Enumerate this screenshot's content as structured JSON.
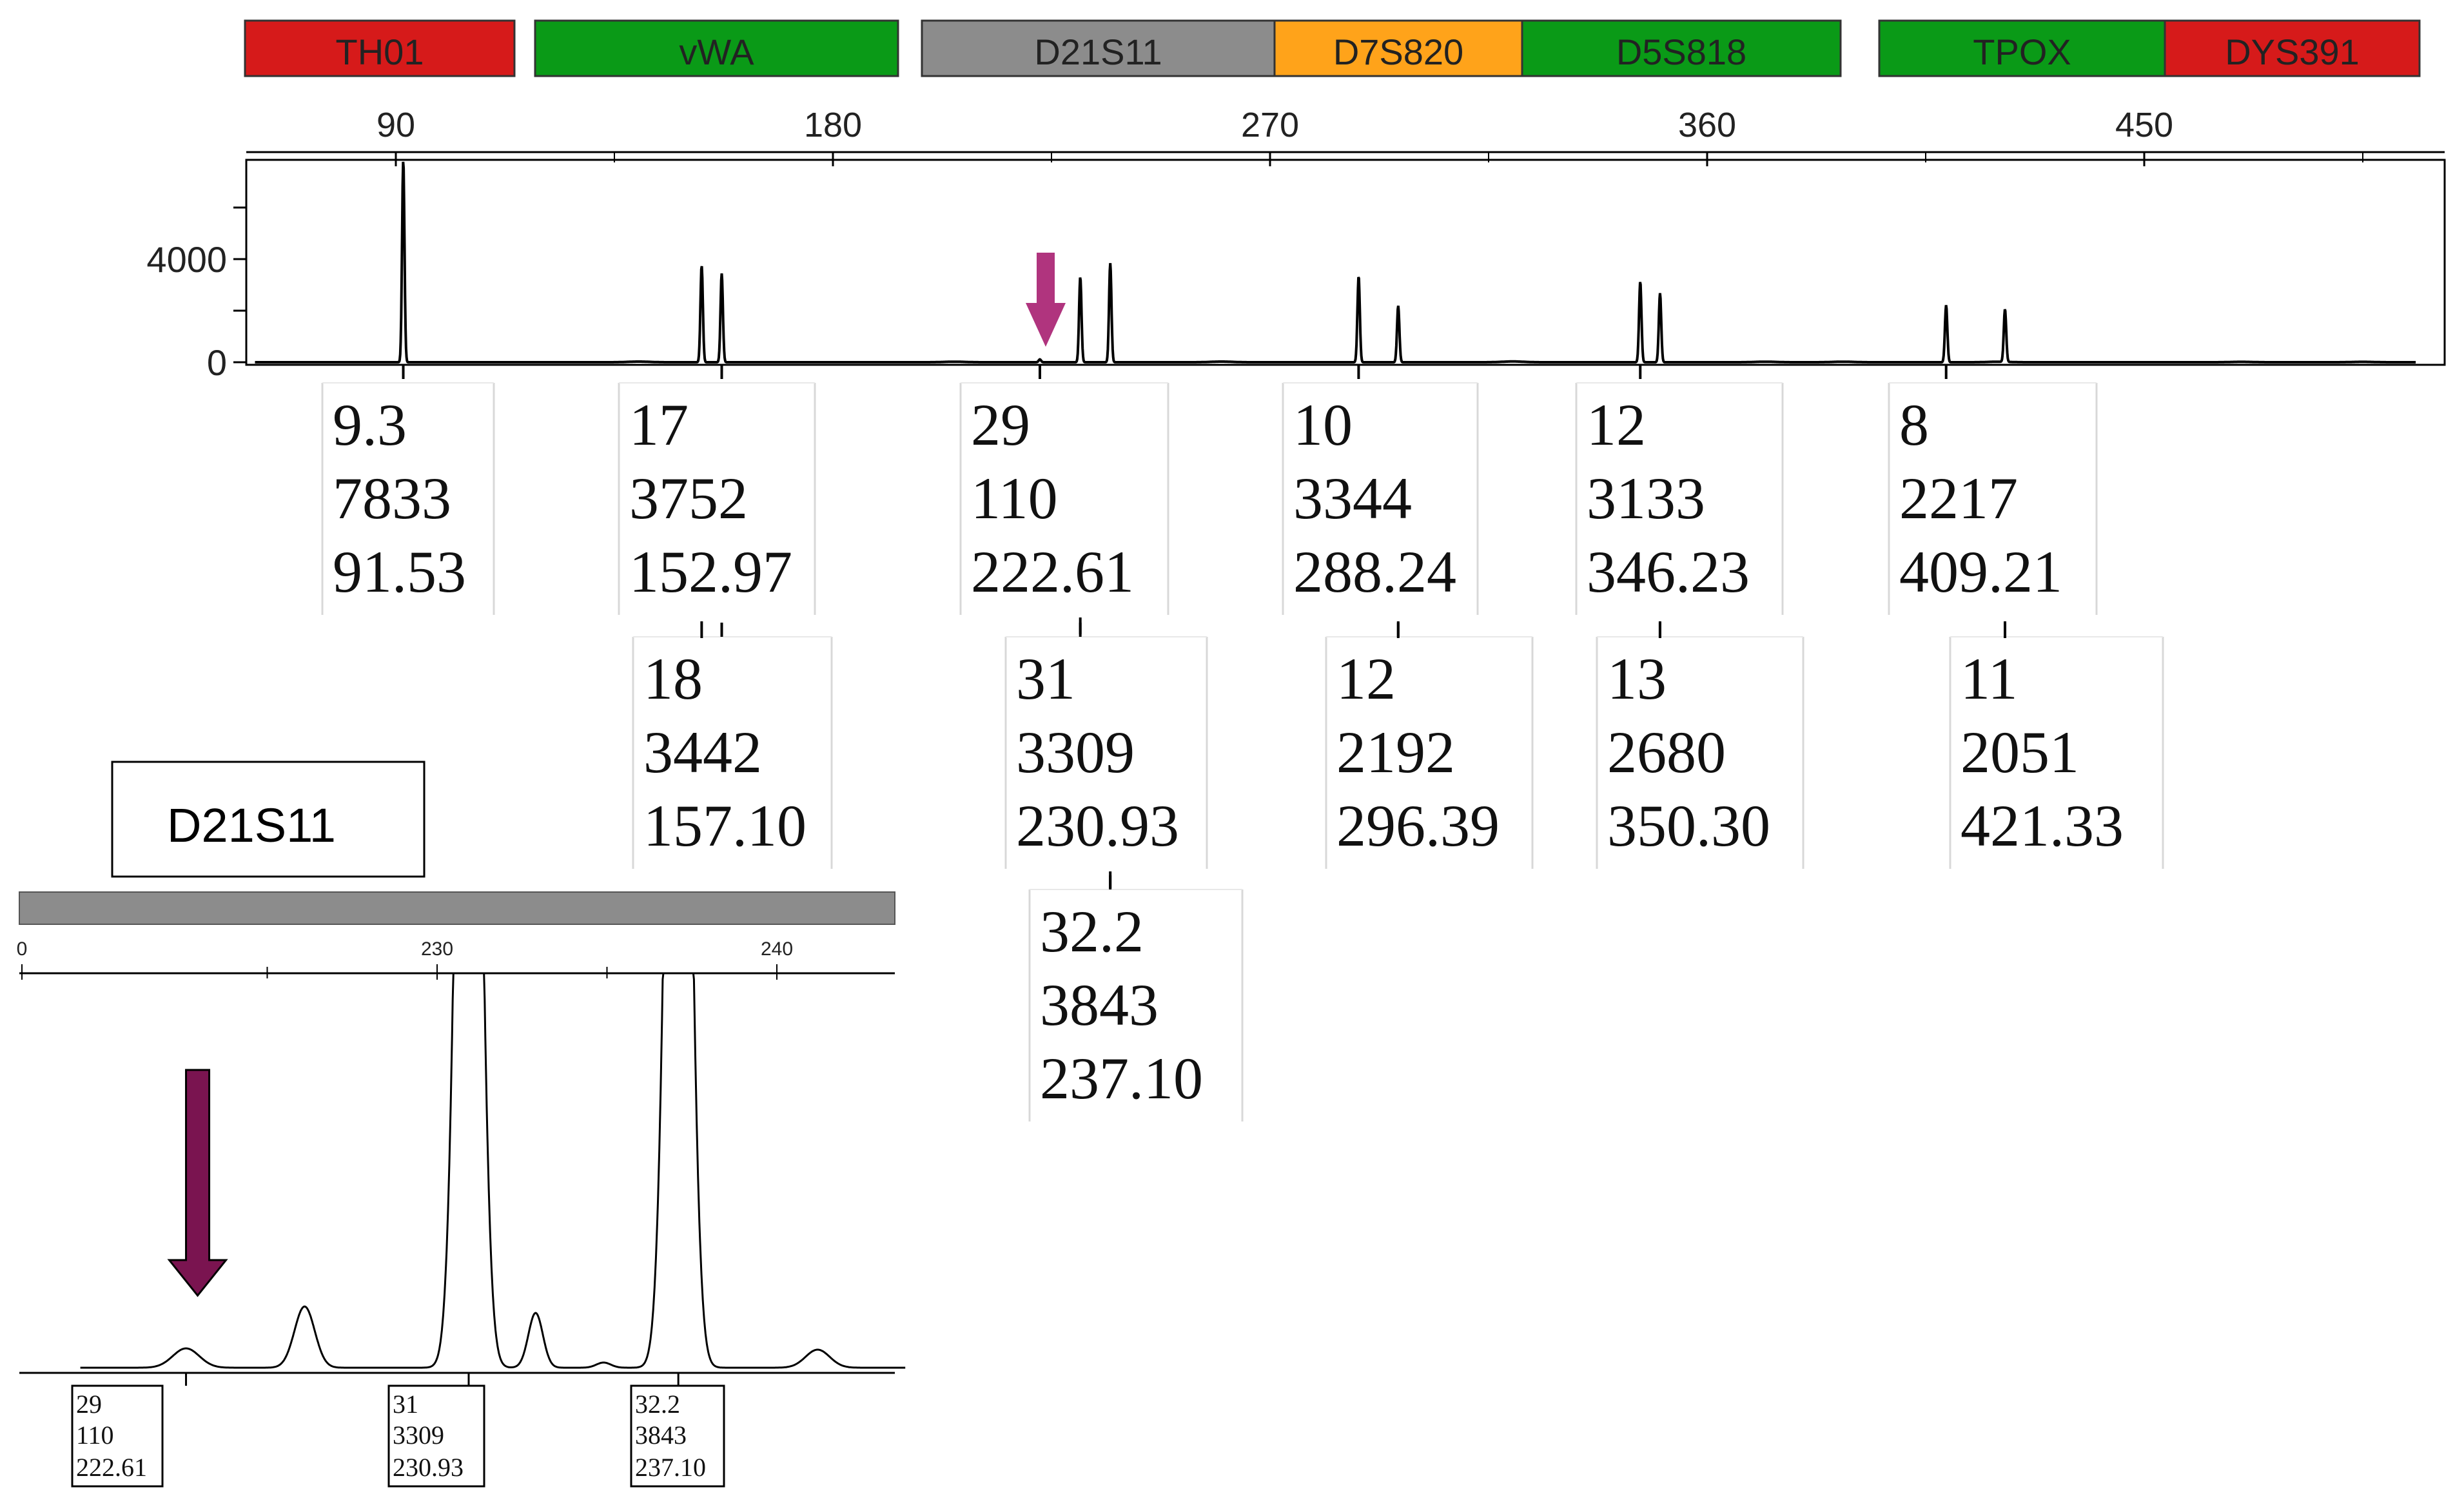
{
  "colors": {
    "red": "#d61a1a",
    "green": "#0a9a17",
    "gray": "#8c8c8c",
    "orange": "#ffa31a",
    "magenta": "#b0347e",
    "dark_magenta": "#7a1450",
    "trace": "#000000"
  },
  "chart_data": [
    {
      "type": "line",
      "subtype": "electropherogram",
      "markers": [
        {
          "name": "TH01",
          "color": "#d61a1a"
        },
        {
          "name": "vWA",
          "color": "#0a9a17"
        },
        {
          "name": "D21S11",
          "color": "#8c8c8c"
        },
        {
          "name": "D7S820",
          "color": "#ffa31a"
        },
        {
          "name": "D5S818",
          "color": "#0a9a17"
        },
        {
          "name": "TPOX",
          "color": "#0a9a17"
        },
        {
          "name": "DYS391",
          "color": "#d61a1a"
        }
      ],
      "x_ticks": [
        "90",
        "180",
        "270",
        "360",
        "450"
      ],
      "y_ticks": [
        "0",
        "4000"
      ],
      "xlim": [
        60,
        510
      ],
      "ylim": [
        0,
        8000
      ],
      "peaks": [
        {
          "allele": "9.3",
          "height": "7833",
          "size": "91.53",
          "x": 91.53,
          "y": 7833
        },
        {
          "allele": "17",
          "height": "3752",
          "size": "152.97",
          "x": 152.97,
          "y": 3752
        },
        {
          "allele": "18",
          "height": "3442",
          "size": "157.10",
          "x": 157.1,
          "y": 3442
        },
        {
          "allele": "29",
          "height": "110",
          "size": "222.61",
          "x": 222.61,
          "y": 110
        },
        {
          "allele": "31",
          "height": "3309",
          "size": "230.93",
          "x": 230.93,
          "y": 3309
        },
        {
          "allele": "32.2",
          "height": "3843",
          "size": "237.10",
          "x": 237.1,
          "y": 3843
        },
        {
          "allele": "10",
          "height": "3344",
          "size": "288.24",
          "x": 288.24,
          "y": 3344
        },
        {
          "allele": "12",
          "height": "2192",
          "size": "296.39",
          "x": 296.39,
          "y": 2192
        },
        {
          "allele": "12",
          "height": "3133",
          "size": "346.23",
          "x": 346.23,
          "y": 3133
        },
        {
          "allele": "13",
          "height": "2680",
          "size": "350.30",
          "x": 350.3,
          "y": 2680
        },
        {
          "allele": "8",
          "height": "2217",
          "size": "409.21",
          "x": 409.21,
          "y": 2217
        },
        {
          "allele": "11",
          "height": "2051",
          "size": "421.33",
          "x": 421.33,
          "y": 2051
        }
      ],
      "arrow_at": 222.61
    },
    {
      "type": "line",
      "subtype": "electropherogram-zoom",
      "title": "D21S11",
      "x_ticks": [
        "0",
        "230",
        "240"
      ],
      "peaks": [
        {
          "allele": "29",
          "height": "110",
          "size": "222.61",
          "x": 222.61
        },
        {
          "allele": "31",
          "height": "3309",
          "size": "230.93",
          "x": 230.93
        },
        {
          "allele": "32.2",
          "height": "3843",
          "size": "237.10",
          "x": 237.1
        }
      ],
      "arrow_at": 222.61
    }
  ]
}
